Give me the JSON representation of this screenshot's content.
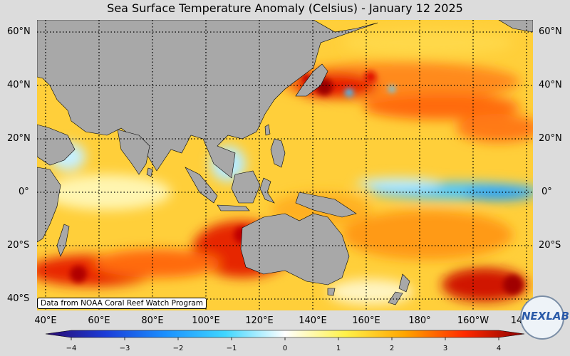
{
  "title": "Sea Surface Temperature Anomaly (Celsius) - January 12 2025",
  "source_note": "Data from NOAA Coral Reef Watch Program",
  "logo_text": "NEXLAB",
  "lat_ticks": [
    "60°N",
    "40°N",
    "20°N",
    "0°",
    "20°S",
    "40°S"
  ],
  "lon_ticks": [
    "40°E",
    "60°E",
    "80°E",
    "100°E",
    "120°E",
    "140°E",
    "160°E",
    "180°",
    "160°W",
    "14"
  ],
  "colorbar": {
    "ticks": [
      "−4",
      "−3",
      "−2",
      "−1",
      "0",
      "1",
      "2",
      "3",
      "4"
    ],
    "range": [
      -4,
      4
    ],
    "colors": [
      "#2b0a6e",
      "#1b3cd8",
      "#1a90ff",
      "#3fd6ff",
      "#ffffff",
      "#fff24a",
      "#ffa500",
      "#ff2a00",
      "#8a0000"
    ]
  },
  "land_color": "#a8a8a8",
  "grid_style": "dotted"
}
